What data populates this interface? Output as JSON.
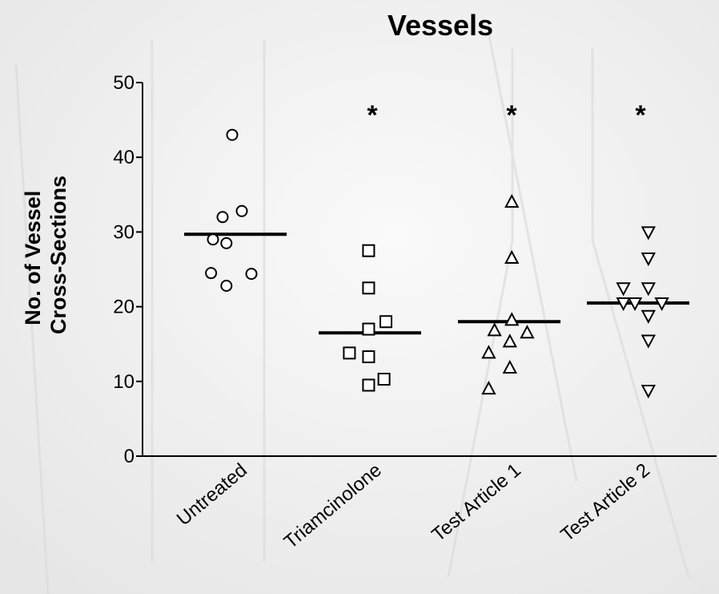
{
  "chart_data": {
    "type": "scatter",
    "title": "Vessels",
    "ylabel_lines": [
      "No. of Vessel",
      "Cross-Sections"
    ],
    "xlabel": "",
    "ylim": [
      0,
      50
    ],
    "yticks": [
      0,
      10,
      20,
      30,
      40,
      50
    ],
    "grid": false,
    "categories": [
      "Untreated",
      "Triamcinolone",
      "Test Article 1",
      "Test Article 2"
    ],
    "series": [
      {
        "category": "Untreated",
        "marker": "circle",
        "mean": 29.7,
        "significance": "",
        "points": [
          {
            "offset": 0,
            "y": 43
          },
          {
            "offset": -0.25,
            "y": 32
          },
          {
            "offset": 0.25,
            "y": 32.8
          },
          {
            "offset": -0.5,
            "y": 29
          },
          {
            "offset": -0.15,
            "y": 28.5
          },
          {
            "offset": -0.55,
            "y": 24.5
          },
          {
            "offset": 0.5,
            "y": 24.4
          },
          {
            "offset": -0.15,
            "y": 22.8
          }
        ]
      },
      {
        "category": "Triamcinolone",
        "marker": "square",
        "mean": 16.5,
        "significance": "*",
        "points": [
          {
            "offset": 0.05,
            "y": 27.5
          },
          {
            "offset": 0.05,
            "y": 22.5
          },
          {
            "offset": 0.05,
            "y": 17
          },
          {
            "offset": 0.5,
            "y": 18
          },
          {
            "offset": -0.45,
            "y": 13.8
          },
          {
            "offset": 0.05,
            "y": 13.3
          },
          {
            "offset": 0.05,
            "y": 9.5
          },
          {
            "offset": 0.45,
            "y": 10.3
          }
        ]
      },
      {
        "category": "Test Article 1",
        "marker": "triangle-up",
        "mean": 18,
        "significance": "*",
        "points": [
          {
            "offset": 0.15,
            "y": 34
          },
          {
            "offset": 0.15,
            "y": 26.5
          },
          {
            "offset": 0.15,
            "y": 18.2
          },
          {
            "offset": -0.3,
            "y": 16.8
          },
          {
            "offset": 0.55,
            "y": 16.5
          },
          {
            "offset": -0.45,
            "y": 13.8
          },
          {
            "offset": 0.1,
            "y": 15.3
          },
          {
            "offset": 0.1,
            "y": 11.8
          },
          {
            "offset": -0.45,
            "y": 9
          }
        ]
      },
      {
        "category": "Test Article 2",
        "marker": "triangle-down",
        "mean": 20.5,
        "significance": "*",
        "points": [
          {
            "offset": 0.35,
            "y": 30
          },
          {
            "offset": 0.35,
            "y": 26.5
          },
          {
            "offset": -0.3,
            "y": 22.5
          },
          {
            "offset": 0.35,
            "y": 22.5
          },
          {
            "offset": -0.3,
            "y": 20.5
          },
          {
            "offset": 0.0,
            "y": 20.5
          },
          {
            "offset": 0.7,
            "y": 20.5
          },
          {
            "offset": 0.35,
            "y": 18.8
          },
          {
            "offset": 0.35,
            "y": 15.5
          },
          {
            "offset": 0.35,
            "y": 8.8
          }
        ]
      }
    ],
    "colors": {
      "axis": "#000000",
      "marker_stroke": "#000000",
      "marker_fill": "#ffffff",
      "mean_line": "#000000",
      "background": "#f4f4f4"
    }
  }
}
